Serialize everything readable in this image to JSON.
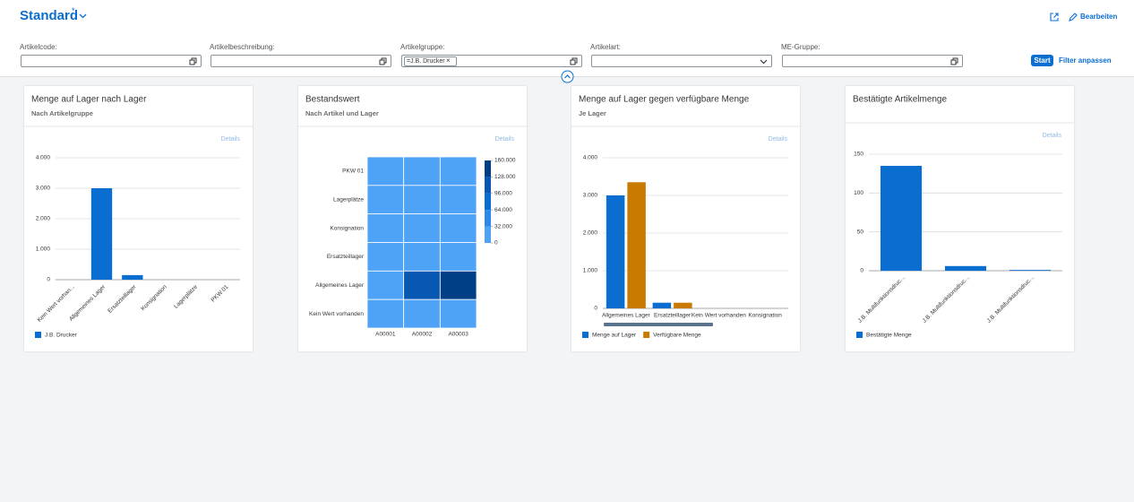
{
  "header": {
    "title": "Standard",
    "modified_marker": "*",
    "edit": "Bearbeiten"
  },
  "filters": [
    {
      "label": "Artikelcode:"
    },
    {
      "label": "Artikelbeschreibung:"
    },
    {
      "label": "Artikelgruppe:",
      "token": "=J.B. Drucker"
    },
    {
      "label": "Artikelart:"
    },
    {
      "label": "ME-Gruppe:"
    }
  ],
  "filter_actions": {
    "start": "Start",
    "adapt": "Filter anpassen"
  },
  "cards": [
    {
      "title": "Menge auf Lager nach Lager",
      "subtitle": "Nach Artikelgruppe",
      "details": "Details",
      "chart_data": {
        "type": "bar",
        "categories": [
          "Kein Wert vorhan...",
          "Allgemeines Lager",
          "Ersatzteillager",
          "Konsignation",
          "Lagerplätze",
          "PKW 01"
        ],
        "series": [
          {
            "name": "J.B. Drucker",
            "color": "#0a6ed1",
            "values": [
              0,
              3000,
              150,
              0,
              0,
              0
            ]
          }
        ],
        "ylim": [
          0,
          4000
        ],
        "yticks": [
          0,
          {
            "value": 1000,
            "label": "1.000"
          },
          {
            "value": 2000,
            "label": "2.000"
          },
          {
            "value": 3000,
            "label": "3.000"
          },
          {
            "value": 4000,
            "label": "4.000"
          }
        ],
        "grid": true
      }
    },
    {
      "title": "Bestandswert",
      "subtitle": "Nach Artikel und Lager",
      "details": "Details",
      "chart_data": {
        "type": "heatmap",
        "x": [
          "A00001",
          "A00002",
          "A00003"
        ],
        "y": [
          "PKW 01",
          "Lagerplätze",
          "Konsignation",
          "Ersatzteillager",
          "Allgemeines Lager",
          "Kein Wert vorhanden"
        ],
        "z": [
          [
            0,
            0,
            0
          ],
          [
            0,
            0,
            0
          ],
          [
            0,
            0,
            0
          ],
          [
            0,
            0,
            0
          ],
          [
            0,
            115000,
            150000
          ],
          [
            0,
            0,
            0
          ]
        ],
        "zlim": [
          0,
          160000
        ],
        "colors": [
          "#4fa3f7",
          "#2c89ea",
          "#0a6ed1",
          "#0857b3",
          "#003f85"
        ],
        "zticks": [
          0,
          {
            "value": 32000,
            "label": "32.000"
          },
          {
            "value": 64000,
            "label": "64.000"
          },
          {
            "value": 96000,
            "label": "96.000"
          },
          {
            "value": 128000,
            "label": "128.000"
          },
          {
            "value": 160000,
            "label": "160.000"
          }
        ]
      }
    },
    {
      "title": "Menge auf Lager gegen verfügbare Menge",
      "subtitle": "Je Lager",
      "details": "Details",
      "chart_data": {
        "type": "bar",
        "categories": [
          "Allgemeines Lager",
          "Ersatzteillager",
          "Kein Wert vorhanden",
          "Konsignation"
        ],
        "series": [
          {
            "name": "Menge auf Lager",
            "color": "#0a6ed1",
            "values": [
              3000,
              150,
              0,
              0
            ]
          },
          {
            "name": "Verfügbare Menge",
            "color": "#c87b00",
            "values": [
              3350,
              150,
              0,
              0
            ]
          }
        ],
        "ylim": [
          0,
          4000
        ],
        "yticks": [
          0,
          {
            "value": 1000,
            "label": "1.000"
          },
          {
            "value": 2000,
            "label": "2.000"
          },
          {
            "value": 3000,
            "label": "3.000"
          },
          {
            "value": 4000,
            "label": "4.000"
          }
        ],
        "grid": true
      }
    },
    {
      "title": "Bestätigte Artikelmenge",
      "details": "Details",
      "chart_data": {
        "type": "bar",
        "categories": [
          "J.B. Multifunktionsdruc...",
          "J.B. Multifunktionsdruc...",
          "J.B. Multifunktionsdruc..."
        ],
        "series": [
          {
            "name": "Bestätigte Menge",
            "color": "#0a6ed1",
            "values": [
              135,
              6,
              1
            ]
          }
        ],
        "ylim": [
          0,
          150
        ],
        "yticks": [
          0,
          50,
          100,
          150
        ],
        "grid": true
      }
    }
  ]
}
